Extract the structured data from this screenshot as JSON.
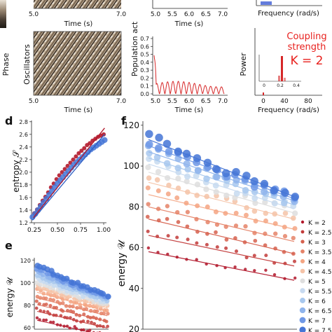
{
  "panel_labels": {
    "d": "d",
    "e": "e",
    "f": "f"
  },
  "raster": {
    "top_xticks": [
      "5.0",
      "7.0"
    ],
    "xlabel": "Time (s)",
    "ylabel_oscillators": "Oscillators",
    "ylabel_phase": "Phase",
    "bottom_xticks": [
      "5.0",
      "7.0"
    ]
  },
  "population": {
    "ylabel": "Population act",
    "top_xticks": [
      "5.0",
      "5.5",
      "6.0",
      "6.5",
      "7.0"
    ],
    "yticks": [
      "0.0",
      "0.1",
      "0.2",
      "0.3",
      "0.4",
      "0.5",
      "0.6",
      "0.7"
    ],
    "xlabel": "Time (s)",
    "bottom_xticks": [
      "5.0",
      "5.5",
      "6.0",
      "6.5",
      "7.0"
    ],
    "color": "#d62728"
  },
  "power": {
    "top_xlabel": "Frequency (rad/s)",
    "ylabel": "Power",
    "xlabel": "Frequency (rad/s)",
    "xticks": [
      "0",
      "40",
      "80"
    ],
    "inset_ticks": [
      "0",
      "0.2",
      "0.4"
    ],
    "coupling_text": [
      "Coupling",
      "strength",
      "K = 2"
    ],
    "coupling_color": "#e8201d"
  },
  "chart_data": [
    {
      "id": "d",
      "type": "scatter",
      "ylabel": "entropy 𝒮",
      "xlim": [
        0.22,
        1.03
      ],
      "ylim": [
        1.2,
        2.82
      ],
      "xticks": [
        "0.25",
        "0.50",
        "0.75",
        "1.00"
      ],
      "yticks": [
        "1.2",
        "1.4",
        "1.6",
        "1.8",
        "2.0",
        "2.2",
        "2.4",
        "2.6",
        "2.8"
      ],
      "series": [
        {
          "color": "#b2182b",
          "x": [
            0.25,
            0.28,
            0.31,
            0.34,
            0.37,
            0.4,
            0.43,
            0.46,
            0.49,
            0.52,
            0.55,
            0.58,
            0.61,
            0.64,
            0.67,
            0.7,
            0.73,
            0.76,
            0.79,
            0.82,
            0.85,
            0.88,
            0.91,
            0.94,
            0.97,
            1.0
          ],
          "y": [
            1.35,
            1.41,
            1.48,
            1.55,
            1.61,
            1.68,
            1.76,
            1.82,
            1.89,
            1.95,
            2.0,
            2.05,
            2.1,
            2.15,
            2.2,
            2.25,
            2.3,
            2.34,
            2.38,
            2.43,
            2.46,
            2.5,
            2.53,
            2.56,
            2.58,
            2.6
          ]
        },
        {
          "color": "#4575d6",
          "x": [
            0.23,
            0.26,
            0.29,
            0.32,
            0.35,
            0.38,
            0.41,
            0.44,
            0.47,
            0.5,
            0.53,
            0.56,
            0.59,
            0.62,
            0.65,
            0.68,
            0.71,
            0.74,
            0.77,
            0.8,
            0.83,
            0.86,
            0.89,
            0.92,
            0.95,
            0.98,
            1.01
          ],
          "y": [
            1.29,
            1.34,
            1.4,
            1.46,
            1.52,
            1.58,
            1.64,
            1.7,
            1.76,
            1.82,
            1.87,
            1.92,
            1.97,
            2.02,
            2.07,
            2.12,
            2.16,
            2.2,
            2.24,
            2.28,
            2.32,
            2.36,
            2.39,
            2.42,
            2.45,
            2.48,
            2.51
          ]
        }
      ],
      "fit_lines": [
        {
          "color": "#b2182b",
          "x": [
            0.24,
            1.01
          ],
          "y": [
            1.28,
            2.7
          ]
        },
        {
          "color": "#2f5fc4",
          "x": [
            0.23,
            1.01
          ],
          "y": [
            1.24,
            2.6
          ]
        }
      ]
    },
    {
      "id": "e",
      "type": "scatter",
      "ylabel": "energy 𝒰",
      "xlim": [
        0,
        1
      ],
      "ylim": [
        58,
        122
      ],
      "yticks": [
        "60",
        "80",
        "100",
        "120"
      ],
      "series": [
        {
          "name": "K = 2",
          "color": "#b2182b",
          "start": 68,
          "end": 53
        },
        {
          "name": "K = 2.5",
          "color": "#c23b3a",
          "start": 76,
          "end": 60
        },
        {
          "name": "K = 3",
          "color": "#d6604d",
          "start": 82,
          "end": 66
        },
        {
          "name": "K = 3.5",
          "color": "#e58267",
          "start": 88,
          "end": 71
        },
        {
          "name": "K = 4",
          "color": "#f4a582",
          "start": 93,
          "end": 75
        },
        {
          "name": "K = 4.5",
          "color": "#f5c3a7",
          "start": 97,
          "end": 78
        },
        {
          "name": "K = 5",
          "color": "#dedede",
          "start": 100,
          "end": 80
        },
        {
          "name": "K = 5.5",
          "color": "#c7daf0",
          "start": 104,
          "end": 82
        },
        {
          "name": "K = 6",
          "color": "#a8c8ee",
          "start": 107,
          "end": 84
        },
        {
          "name": "K = 6.5",
          "color": "#8fb4ec",
          "start": 110,
          "end": 86
        },
        {
          "name": "K = 7",
          "color": "#6f98e6",
          "start": 113,
          "end": 87
        },
        {
          "name": "K = 7.5",
          "color": "#4575d6",
          "start": 116,
          "end": 88
        }
      ]
    },
    {
      "id": "f",
      "type": "scatter",
      "ylabel": "energy 𝒰",
      "xlim": [
        0,
        1
      ],
      "ylim": [
        20,
        122
      ],
      "yticks": [
        "20",
        "40",
        "60",
        "80",
        "100",
        "120"
      ],
      "legend_position": "right",
      "series": [
        {
          "name": "K = 2",
          "color": "#b2182b",
          "start": 60,
          "end": 45
        },
        {
          "name": "K = 2.5",
          "color": "#c23b3a",
          "start": 68,
          "end": 52
        },
        {
          "name": "K = 3",
          "color": "#d6604d",
          "start": 76,
          "end": 58
        },
        {
          "name": "K = 3.5",
          "color": "#e58267",
          "start": 82,
          "end": 64
        },
        {
          "name": "K = 4",
          "color": "#f4a582",
          "start": 88,
          "end": 70
        },
        {
          "name": "K = 4.5",
          "color": "#f5c3a7",
          "start": 94,
          "end": 75
        },
        {
          "name": "K = 5",
          "color": "#dedede",
          "start": 99,
          "end": 78
        },
        {
          "name": "K = 5.5",
          "color": "#c7daf0",
          "start": 103,
          "end": 80
        },
        {
          "name": "K = 6",
          "color": "#a8c8ee",
          "start": 106,
          "end": 82
        },
        {
          "name": "K = 6.5",
          "color": "#8fb4ec",
          "start": 109,
          "end": 84
        },
        {
          "name": "K = 7",
          "color": "#6f98e6",
          "start": 112,
          "end": 85
        },
        {
          "name": "K = 7.5",
          "color": "#4575d6",
          "start": 115,
          "end": 86
        }
      ]
    }
  ]
}
